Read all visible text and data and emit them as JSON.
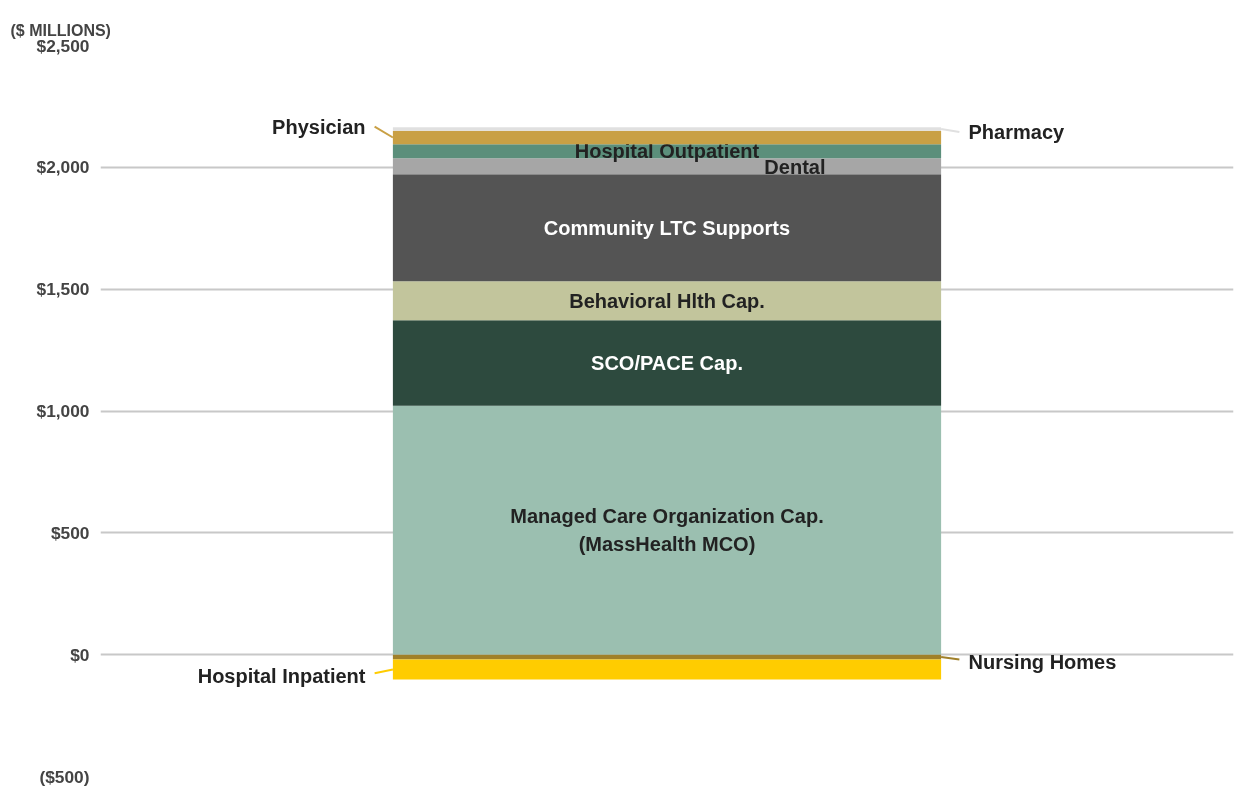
{
  "chart_data": {
    "type": "bar",
    "stacked": true,
    "ylabel": "($ MILLIONS)",
    "categories": [
      null
    ],
    "series": [
      {
        "name": "Managed Care Organization Cap.\n(MassHealth MCO)",
        "color": "#9bbfb0",
        "values": [
          1022
        ]
      },
      {
        "name": "SCO/PACE Cap.",
        "color": "#2d4a3e",
        "values": [
          350
        ]
      },
      {
        "name": "Behavioral Hlth Cap.",
        "color": "#c2c59c",
        "values": [
          160
        ]
      },
      {
        "name": "Community LTC Supports",
        "color": "#545454",
        "values": [
          440
        ]
      },
      {
        "name": "Dental",
        "color": "#a6a6a6",
        "values": [
          65
        ]
      },
      {
        "name": "Hospital Outpatient",
        "color": "#5b8f7b",
        "values": [
          58
        ]
      },
      {
        "name": "Physician",
        "color": "#c9a045",
        "values": [
          55
        ]
      },
      {
        "name": "Pharmacy",
        "color": "#e0e0e0",
        "values": [
          14
        ]
      },
      {
        "name": "Nursing Homes",
        "color": "#a0802a",
        "values": [
          -20
        ]
      },
      {
        "name": "Hospital Inpatient",
        "color": "#ffcc00",
        "values": [
          -82
        ]
      }
    ],
    "ylim": [
      -500,
      2500
    ],
    "yticks": [
      {
        "value": -500,
        "label": "($500)"
      },
      {
        "value": 0,
        "label": "$0"
      },
      {
        "value": 500,
        "label": "$500"
      },
      {
        "value": 1000,
        "label": "$1,000"
      },
      {
        "value": 1500,
        "label": "$1,500"
      },
      {
        "value": 2000,
        "label": "$2,000"
      },
      {
        "value": 2500,
        "label": "$2,500"
      }
    ],
    "grid": "y",
    "legend": "right"
  }
}
